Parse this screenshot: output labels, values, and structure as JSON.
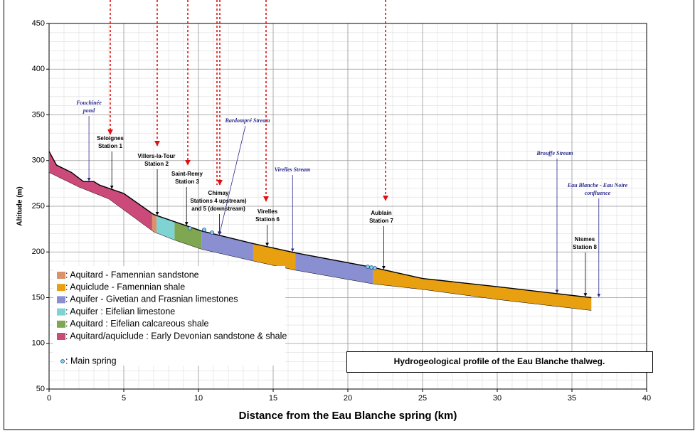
{
  "chart_data": {
    "type": "profile",
    "title": "Hydrogeological profile of the Eau Blanche thalweg.",
    "xlabel": "Distance from the Eau Blanche spring (km)",
    "ylabel": "Altitude (m)",
    "xlim": [
      0,
      40
    ],
    "xticks": [
      0,
      5,
      10,
      15,
      20,
      25,
      30,
      35,
      40
    ],
    "ylim": [
      50,
      450
    ],
    "yticks": [
      50,
      100,
      150,
      200,
      250,
      300,
      350,
      400,
      450
    ],
    "grid": true,
    "minor_grid": {
      "x": 1,
      "y": 10
    },
    "legend": [
      {
        "label": ": Aquitard - Famennian sandstone",
        "color": "#d9926a"
      },
      {
        "label": ": Aquiclude - Famennian shale",
        "color": "#e8a010"
      },
      {
        "label": ": Aquifer - Givetian and Frasnian limestones",
        "color": "#8a8fd2"
      },
      {
        "label": ": Aquifer : Eifelian limestone",
        "color": "#7fd3d3"
      },
      {
        "label": ": Aquitard : Eifelian calcareous shale",
        "color": "#7fa650"
      },
      {
        "label": ": Aquitard/aquiclude : Early Devonian sandstone & shale",
        "color": "#cc4a7a"
      }
    ],
    "spring_label": ": Main spring",
    "top": {
      "x": [
        0,
        0.5,
        1.5,
        2.3,
        3.0,
        3.4,
        5,
        7,
        10.2,
        13.7,
        16.5,
        21.7,
        25,
        30,
        36.3
      ],
      "y": [
        310,
        295,
        287,
        277,
        277,
        273,
        264,
        241,
        223,
        209,
        199,
        183,
        171,
        162,
        150
      ]
    },
    "bottom": {
      "x": [
        0,
        1,
        2,
        4,
        7,
        8.4,
        10.2,
        13.7,
        16.5,
        21.7,
        25,
        30,
        36.3
      ],
      "y": [
        287,
        279,
        271,
        258,
        222,
        213,
        203,
        190,
        180,
        165,
        159,
        148,
        136
      ]
    },
    "layers": [
      {
        "legend": 5,
        "from": 0,
        "to": 6.9
      },
      {
        "legend": 0,
        "from": 6.9,
        "to": 7.2
      },
      {
        "legend": 3,
        "from": 7.2,
        "to": 8.4
      },
      {
        "legend": 4,
        "from": 8.4,
        "to": 10.2
      },
      {
        "legend": 2,
        "from": 10.2,
        "to": 13.7
      },
      {
        "legend": 1,
        "from": 13.7,
        "to": 16.5
      },
      {
        "legend": 2,
        "from": 16.5,
        "to": 21.7
      },
      {
        "legend": 1,
        "from": 21.7,
        "to": 36.3
      }
    ],
    "stations": [
      {
        "lines": [
          "Seloignes",
          "Station 1"
        ],
        "x": 4.2
      },
      {
        "lines": [
          "Villers-la-Tour",
          "Station 2"
        ],
        "x": 7.24
      },
      {
        "lines": [
          "Saint-Remy",
          "Station 3"
        ],
        "x": 9.2
      },
      {
        "lines": [
          "Chimay",
          "Stations 4 upstream)",
          "and 5 (downstream)"
        ],
        "x": 11.4
      },
      {
        "lines": [
          "Virelles",
          "Station 6"
        ],
        "x": 14.6
      },
      {
        "lines": [
          "Aublain",
          "Station 7"
        ],
        "x": 22.4
      },
      {
        "lines": [
          "Nismes",
          "Station 8"
        ],
        "x": 35.9
      }
    ],
    "streams": [
      {
        "lines": [
          "Fouchinée",
          "pond"
        ],
        "x": 2.67
      },
      {
        "lines": [
          "Bardompré Stream"
        ],
        "x": 11.4
      },
      {
        "lines": [
          "Virelles Stream"
        ],
        "x": 16.3
      },
      {
        "lines": [
          "Brouffe Stream"
        ],
        "x": 34
      },
      {
        "lines": [
          "Eau Blanche - Eau Noire",
          "confluence"
        ],
        "x": 36.8
      }
    ]
  }
}
